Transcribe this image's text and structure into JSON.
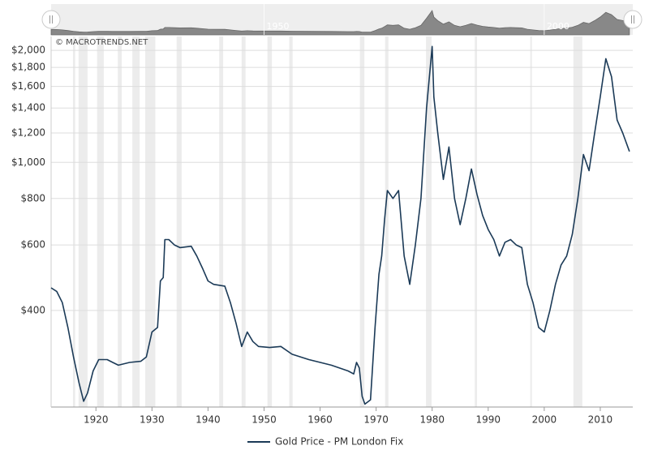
{
  "chart_data": {
    "type": "line",
    "watermark": "© MACROTRENDS.NET",
    "log_scale": true,
    "grid": true,
    "legend_position": "bottom",
    "xlim": [
      1912,
      2015.8
    ],
    "xticks": [
      1920,
      1930,
      1940,
      1950,
      1960,
      1970,
      1980,
      1990,
      2000,
      2010
    ],
    "ylim": [
      220,
      2180
    ],
    "yticks": [
      {
        "value": 400,
        "label": "$400"
      },
      {
        "value": 600,
        "label": "$600"
      },
      {
        "value": 800,
        "label": "$800"
      },
      {
        "value": 1000,
        "label": "$1,000"
      },
      {
        "value": 1200,
        "label": "$1,200"
      },
      {
        "value": 1400,
        "label": "$1,400"
      },
      {
        "value": 1600,
        "label": "$1,600"
      },
      {
        "value": 1800,
        "label": "$1,800"
      },
      {
        "value": 2000,
        "label": "$2,000"
      }
    ],
    "shaded_ranges": [
      [
        1915.9,
        1916.3
      ],
      [
        1916.9,
        1918.5
      ],
      [
        1920.2,
        1921.4
      ],
      [
        1923.9,
        1924.6
      ],
      [
        1926.5,
        1927.8
      ],
      [
        1928.8,
        1930.6
      ],
      [
        1934.4,
        1935.3
      ],
      [
        1942,
        1942.7
      ],
      [
        1946,
        1946.7
      ],
      [
        1950.6,
        1951.4
      ],
      [
        1954.5,
        1955.1
      ],
      [
        1967.1,
        1967.9
      ],
      [
        1971.6,
        1972.2
      ],
      [
        1978.9,
        1979.9
      ],
      [
        1987.6,
        1988
      ],
      [
        1997.5,
        1997.8
      ],
      [
        2005.2,
        2006.8
      ]
    ],
    "navigator_xticks": [
      1950,
      2000
    ],
    "x": [
      1912,
      1913,
      1914,
      1915,
      1916,
      1917,
      1917.8,
      1918.5,
      1919.5,
      1920.5,
      1922,
      1923,
      1924,
      1926,
      1928,
      1929,
      1930,
      1931,
      1931.5,
      1932,
      1932.3,
      1933,
      1934,
      1935,
      1937,
      1938,
      1939,
      1940,
      1941,
      1943,
      1944,
      1945,
      1946,
      1947,
      1948,
      1949,
      1951,
      1953,
      1955,
      1958,
      1962,
      1965,
      1966,
      1966.5,
      1967,
      1967.5,
      1968,
      1969,
      1969.8,
      1970.5,
      1971,
      1971.5,
      1972,
      1973,
      1974,
      1975,
      1976,
      1977,
      1978,
      1979,
      1980,
      1980.3,
      1981,
      1982,
      1983,
      1984,
      1985,
      1986,
      1987,
      1988,
      1989,
      1990,
      1991,
      1992,
      1993,
      1994,
      1995,
      1996,
      1997,
      1998,
      1999,
      2000,
      2001,
      2002,
      2003,
      2004,
      2005,
      2006,
      2007,
      2008,
      2009,
      2010,
      2011,
      2012,
      2013,
      2014,
      2015.2
    ],
    "series": [
      {
        "name": "Gold Price - PM London Fix",
        "color": "#1b3a57",
        "values": [
          460,
          450,
          420,
          360,
          300,
          255,
          228,
          240,
          275,
          295,
          295,
          290,
          285,
          290,
          292,
          300,
          350,
          360,
          480,
          490,
          620,
          620,
          600,
          590,
          595,
          560,
          520,
          480,
          470,
          465,
          420,
          370,
          320,
          350,
          330,
          320,
          318,
          320,
          305,
          295,
          285,
          275,
          270,
          290,
          280,
          235,
          224,
          230,
          360,
          500,
          560,
          700,
          840,
          800,
          840,
          560,
          470,
          600,
          800,
          1400,
          2050,
          1500,
          1200,
          900,
          1100,
          800,
          680,
          800,
          960,
          820,
          720,
          660,
          620,
          560,
          610,
          620,
          600,
          590,
          470,
          420,
          360,
          350,
          400,
          470,
          530,
          560,
          640,
          800,
          1050,
          950,
          1200,
          1500,
          1900,
          1700,
          1300,
          1200,
          1070
        ]
      }
    ]
  }
}
